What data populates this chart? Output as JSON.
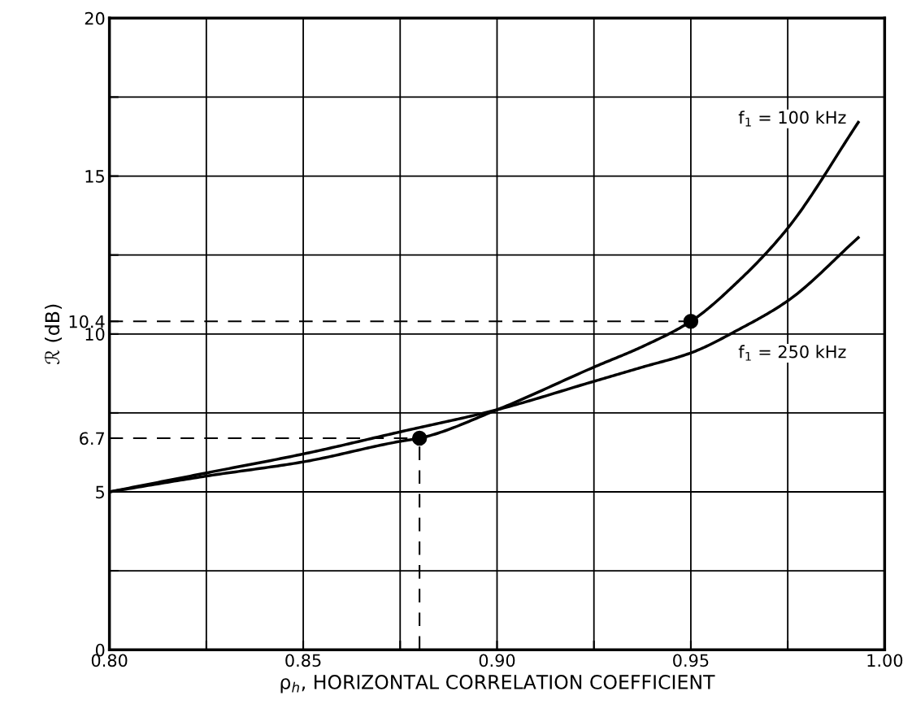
{
  "chart_data": {
    "type": "line",
    "xlabel": "ρ$_{h}$, HORIZONTAL CORRELATION COEFFICIENT",
    "ylabel": "ℛ (dB)",
    "xlim": [
      0.8,
      1.0
    ],
    "ylim": [
      0,
      20
    ],
    "xticks": [
      {
        "value": 0.8,
        "label": "0.80"
      },
      {
        "value": 0.825,
        "label": null
      },
      {
        "value": 0.85,
        "label": "0.85"
      },
      {
        "value": 0.875,
        "label": null
      },
      {
        "value": 0.9,
        "label": "0.90"
      },
      {
        "value": 0.925,
        "label": null
      },
      {
        "value": 0.95,
        "label": "0.95"
      },
      {
        "value": 0.975,
        "label": null
      },
      {
        "value": 1.0,
        "label": "1.00"
      }
    ],
    "yticks": [
      0,
      {
        "value": 2.5,
        "label": null
      },
      5,
      6.7,
      {
        "value": 7.5,
        "label": null
      },
      10,
      10.4,
      {
        "value": 12.5,
        "label": null
      },
      15,
      {
        "value": 17.5,
        "label": null
      },
      20
    ],
    "grid": true,
    "legend": false,
    "series": [
      {
        "name": "f$_{1}$ = 100 kHz",
        "color": "#000000",
        "x": [
          0.8,
          0.825,
          0.85,
          0.875,
          0.88,
          0.9,
          0.925,
          0.9375,
          0.95,
          0.9625,
          0.975,
          0.9932
        ],
        "values": [
          5,
          5.5,
          5.95,
          6.6,
          6.7,
          7.6,
          8.95,
          9.6,
          10.4,
          11.7,
          13.35,
          16.7
        ],
        "marker": "none"
      },
      {
        "name": "f$_{1}$ = 250 kHz",
        "color": "#000000",
        "x": [
          0.8,
          0.825,
          0.85,
          0.875,
          0.9,
          0.925,
          0.9375,
          0.95,
          0.9625,
          0.975,
          0.9932
        ],
        "values": [
          5,
          5.6,
          6.2,
          6.9,
          7.6,
          8.5,
          8.95,
          9.4,
          10.15,
          11.05,
          13.05
        ],
        "marker": "none"
      },
      {
        "type": "scatter",
        "color": "#000000",
        "x": [
          0.88,
          0.95
        ],
        "values": [
          6.7,
          10.4
        ],
        "marker": "circle"
      }
    ],
    "ref_lines": [
      {
        "axis": "y",
        "value": 10.4,
        "line_style": "dashed"
      },
      {
        "axis": "y",
        "value": 6.7,
        "line_style": "dashed"
      },
      {
        "axis": "x",
        "value": 0.88,
        "line_style": "dashed"
      }
    ]
  }
}
